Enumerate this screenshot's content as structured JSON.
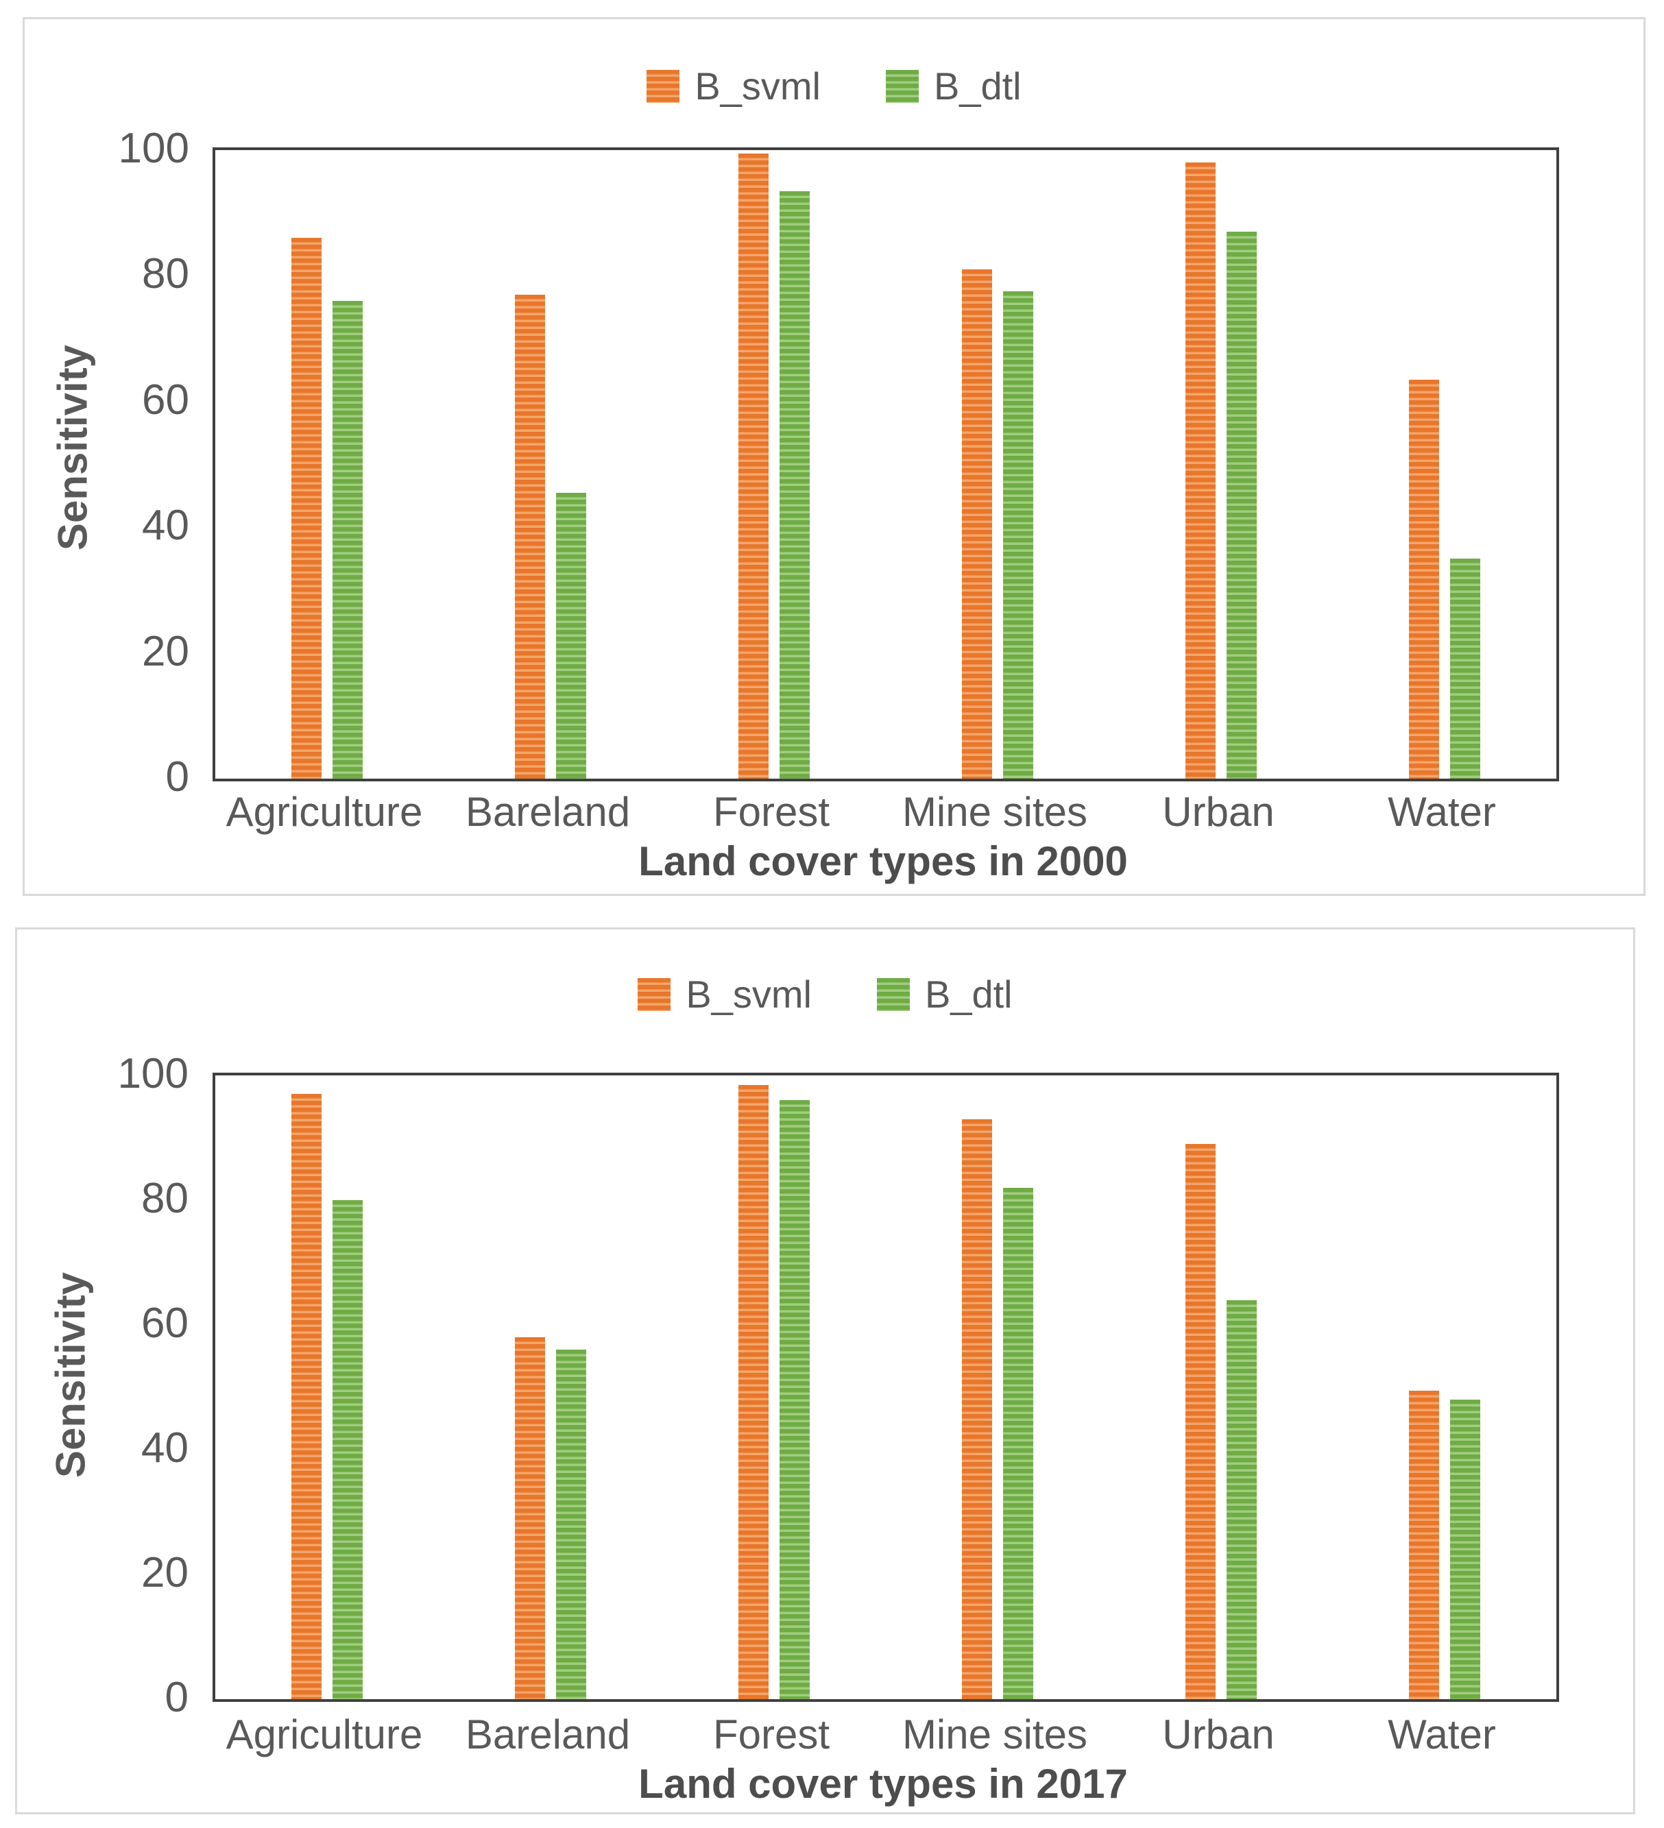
{
  "colors": {
    "series_orange": "#E8762B",
    "series_orange_light": "#F3A66A",
    "series_green": "#6FAC45",
    "series_green_light": "#A2CD80",
    "axis_frame": "#404040",
    "panel_border": "#D9D9D9",
    "text": "#595959"
  },
  "chart_data": [
    {
      "type": "bar",
      "title": "",
      "ylabel": "Sensitivity",
      "xlabel": "Land cover types in 2000",
      "ylim": [
        0,
        100
      ],
      "yticks": [
        0,
        20,
        40,
        60,
        80,
        100
      ],
      "grid": false,
      "legend_position": "top-center",
      "categories": [
        "Agriculture",
        "Bareland",
        "Forest",
        "Mine sites",
        "Urban",
        "Water"
      ],
      "series": [
        {
          "name": "B_svml",
          "pattern": "horizontal-stripes",
          "color": "#E8762B",
          "color_light": "#F3A66A",
          "values": [
            86,
            77,
            99.5,
            81,
            98,
            63.5
          ]
        },
        {
          "name": "B_dtl",
          "pattern": "horizontal-stripes",
          "color": "#6FAC45",
          "color_light": "#A2CD80",
          "values": [
            76,
            45.5,
            93.5,
            77.5,
            87,
            35
          ]
        }
      ]
    },
    {
      "type": "bar",
      "title": "",
      "ylabel": "Sensitivity",
      "xlabel": "Land cover types in 2017",
      "ylim": [
        0,
        100
      ],
      "yticks": [
        0,
        20,
        40,
        60,
        80,
        100
      ],
      "grid": false,
      "legend_position": "top-center",
      "categories": [
        "Agriculture",
        "Bareland",
        "Forest",
        "Mine sites",
        "Urban",
        "Water"
      ],
      "series": [
        {
          "name": "B_svml",
          "pattern": "horizontal-stripes",
          "color": "#E8762B",
          "color_light": "#F3A66A",
          "values": [
            97,
            58,
            98.5,
            93,
            89,
            49.5
          ]
        },
        {
          "name": "B_dtl",
          "pattern": "horizontal-stripes",
          "color": "#6FAC45",
          "color_light": "#A2CD80",
          "values": [
            80,
            56,
            96,
            82,
            64,
            48
          ]
        }
      ]
    }
  ]
}
